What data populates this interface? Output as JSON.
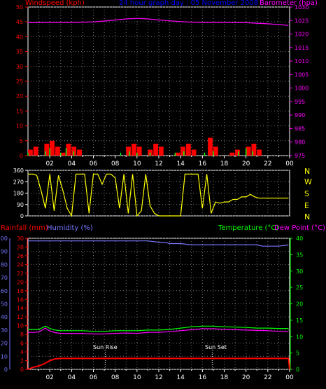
{
  "header": {
    "left_label": "Windspeed (kph)",
    "center_label": "24 hour graph day : 05 November 2008",
    "right_label": "Barometer (hpa)"
  },
  "direction_labels": [
    "N",
    "W",
    "S",
    "E",
    "N"
  ],
  "lower_header": {
    "rain_label": "Rainfall (mm)",
    "humidity_label": "Humidity (%)",
    "temp_label": "Temperature (°C)",
    "dew_label": "Dew Point (°C)"
  },
  "annotations": {
    "sunrise": "Sun Rise",
    "sunset": "Sun Set"
  },
  "colors": {
    "wind": "#ff0000",
    "gust": "#00ff00",
    "calm": "#ffffff",
    "barometer": "#ff00ff",
    "direction": "#ffff00",
    "rain": "#ff0000",
    "humidity": "#7777ff",
    "temperature": "#00ff00",
    "dewpoint": "#ff00ff",
    "grid": "#777777",
    "axis": "#ffffff"
  },
  "chart_data": [
    {
      "type": "line",
      "title": "24 hour graph day : 05 November 2008",
      "xlabel": "",
      "x_ticks": [
        "02",
        "04",
        "06",
        "08",
        "10",
        "12",
        "14",
        "16",
        "18",
        "20",
        "22",
        "00"
      ],
      "xlim": [
        0,
        24
      ],
      "y_left_label": "Windspeed (kph)",
      "y_left_ticks": [
        0,
        5,
        10,
        15,
        20,
        25,
        30,
        35,
        40,
        45,
        50
      ],
      "y_left_lim": [
        0,
        50
      ],
      "y_right_label": "Barometer (hpa)",
      "y_right_ticks": [
        975,
        980,
        985,
        990,
        995,
        1000,
        1005,
        1010,
        1015,
        1020,
        1025,
        1030
      ],
      "y_right_lim": [
        975,
        1030
      ],
      "series": [
        {
          "name": "Barometer (hpa)",
          "axis": "right",
          "x": [
            0,
            1,
            2,
            3,
            4,
            5,
            6,
            7,
            8,
            9,
            10,
            11,
            12,
            13,
            14,
            15,
            16,
            17,
            18,
            19,
            20,
            21,
            22,
            23,
            23.9
          ],
          "y": [
            1024.2,
            1024.2,
            1024.3,
            1024.3,
            1024.3,
            1024.4,
            1024.5,
            1024.8,
            1025.2,
            1025.6,
            1025.8,
            1025.6,
            1025.2,
            1024.9,
            1024.6,
            1024.4,
            1024.3,
            1024.3,
            1024.3,
            1024.2,
            1024.2,
            1024.0,
            1023.8,
            1023.5,
            1023.2
          ]
        },
        {
          "name": "Windspeed (kph)",
          "axis": "left",
          "x": [
            0,
            0.5,
            1,
            1.5,
            2,
            2.5,
            3,
            3.5,
            4,
            4.5,
            5,
            5.5,
            6,
            6.5,
            7,
            7.5,
            8,
            8.5,
            9,
            9.5,
            10,
            10.5,
            11,
            11.5,
            12,
            12.5,
            13,
            13.5,
            14,
            14.5,
            15,
            15.5,
            16,
            16.5,
            17,
            17.5,
            18,
            18.5,
            19,
            19.5,
            20,
            20.5,
            21,
            21.5,
            22,
            22.5,
            23,
            23.5
          ],
          "y": [
            2,
            3,
            0,
            4,
            5,
            3,
            1,
            4,
            3,
            2,
            0,
            0,
            0,
            0,
            0,
            0,
            0,
            0,
            3,
            4,
            3,
            0,
            2,
            4,
            3,
            0,
            0,
            1,
            3,
            4,
            2,
            0,
            0,
            6,
            3,
            0,
            0,
            1,
            2,
            0,
            3,
            4,
            2,
            0,
            0,
            0,
            0,
            0
          ]
        },
        {
          "name": "Gust",
          "axis": "left",
          "x": [
            0,
            1.6,
            2.0,
            3.0,
            3.5,
            4.2,
            8.5,
            9.3,
            10.0,
            11.2,
            13.5,
            14.3,
            16.2,
            17.0,
            19.3,
            20.0,
            20.6
          ],
          "y": [
            0.5,
            1,
            2,
            0.5,
            2,
            1,
            0.5,
            1,
            0.5,
            0.5,
            0.5,
            1,
            0.5,
            1,
            1,
            2,
            1
          ]
        }
      ]
    },
    {
      "type": "line",
      "title": "",
      "xlim": [
        0,
        24
      ],
      "y_ticks": [
        0,
        90,
        180,
        270,
        360
      ],
      "ylim": [
        0,
        360
      ],
      "series": [
        {
          "name": "Wind direction",
          "x": [
            0,
            0.5,
            0.8,
            1.2,
            1.6,
            2.0,
            2.4,
            2.8,
            3.2,
            3.6,
            4.0,
            4.4,
            4.8,
            5.2,
            5.6,
            6.0,
            6.4,
            6.8,
            7.2,
            7.6,
            8.0,
            8.4,
            8.8,
            9.2,
            9.6,
            10.0,
            10.4,
            10.8,
            11.2,
            11.6,
            12.0,
            12.4,
            12.8,
            13.2,
            13.6,
            14.0,
            14.4,
            14.8,
            15.2,
            15.6,
            16.0,
            16.4,
            16.8,
            17.2,
            17.6,
            18.0,
            18.4,
            18.8,
            19.2,
            19.6,
            20.0,
            20.4,
            20.8,
            21.2,
            22.0,
            23.0,
            23.9
          ],
          "y": [
            330,
            330,
            320,
            200,
            60,
            330,
            40,
            320,
            200,
            60,
            0,
            330,
            330,
            330,
            20,
            330,
            330,
            250,
            330,
            330,
            300,
            60,
            330,
            20,
            330,
            0,
            40,
            330,
            80,
            20,
            0,
            0,
            0,
            0,
            0,
            0,
            330,
            330,
            330,
            330,
            60,
            330,
            20,
            110,
            100,
            110,
            110,
            130,
            130,
            150,
            150,
            170,
            150,
            140,
            140,
            140,
            140
          ]
        }
      ]
    },
    {
      "type": "line",
      "title": "",
      "xlim": [
        0,
        24
      ],
      "x_ticks": [
        "02",
        "04",
        "06",
        "08",
        "10",
        "12",
        "14",
        "16",
        "18",
        "20",
        "22",
        "00"
      ],
      "y_humidity_label": "Humidity (%)",
      "y_humidity_ticks": [
        0,
        10,
        20,
        30,
        40,
        50,
        60,
        70,
        80,
        90,
        100
      ],
      "y_rain_label": "Rainfall (mm)",
      "y_rain_ticks": [
        0,
        2,
        4,
        6,
        8,
        10,
        12,
        14,
        16,
        18,
        20,
        22,
        24,
        26,
        28,
        30
      ],
      "y_temp_label": "Temperature (°C)",
      "y_temp_ticks": [
        0,
        5,
        10,
        15,
        20,
        25,
        30,
        35,
        40
      ],
      "series": [
        {
          "name": "Humidity (%)",
          "axis": "humidity",
          "x": [
            0,
            2,
            4,
            6,
            8,
            10,
            11,
            12,
            12.5,
            13,
            14,
            15,
            16,
            17,
            18,
            19,
            20,
            21,
            21.5,
            22,
            23,
            23.9
          ],
          "y": [
            98,
            98,
            98,
            98,
            98,
            98,
            98,
            97,
            97,
            96,
            96,
            95,
            95,
            95,
            95,
            95,
            95,
            95,
            94,
            94,
            94,
            95
          ]
        },
        {
          "name": "Rainfall (mm)",
          "axis": "rain",
          "x": [
            0,
            0.5,
            1.0,
            1.5,
            2.0,
            2.5,
            3.0,
            6,
            10,
            14,
            18,
            22,
            23.9,
            24
          ],
          "y": [
            0,
            0.5,
            0.8,
            1.3,
            2.0,
            2.4,
            2.5,
            2.5,
            2.5,
            2.5,
            2.5,
            2.5,
            2.5,
            0
          ]
        },
        {
          "name": "Temperature (°C)",
          "axis": "temp",
          "x": [
            0,
            0.5,
            1,
            1.6,
            2,
            2.5,
            3,
            4,
            5,
            6,
            7,
            8,
            9,
            10,
            11,
            12,
            13,
            14,
            15,
            16,
            17,
            18,
            19,
            20,
            21,
            22,
            23,
            23.9
          ],
          "y": [
            12.2,
            12.2,
            12.2,
            13.2,
            12.5,
            12.0,
            11.8,
            11.8,
            11.8,
            11.6,
            11.6,
            11.8,
            11.8,
            11.8,
            12.0,
            12.0,
            12.2,
            12.6,
            13.0,
            13.2,
            13.2,
            13.0,
            12.9,
            12.8,
            12.6,
            12.6,
            12.5,
            12.5
          ]
        },
        {
          "name": "Dew Point (°C)",
          "axis": "temp",
          "x": [
            0,
            0.5,
            1,
            1.6,
            2,
            2.5,
            3,
            4,
            5,
            6,
            7,
            8,
            9,
            10,
            11,
            12,
            13,
            14,
            15,
            16,
            17,
            18,
            19,
            20,
            21,
            22,
            23,
            23.9
          ],
          "y": [
            11.3,
            11.3,
            11.4,
            12.6,
            11.7,
            11.2,
            11.0,
            11.0,
            11.0,
            10.8,
            10.8,
            11.0,
            11.1,
            11.0,
            11.3,
            11.3,
            11.5,
            11.8,
            12.1,
            12.4,
            12.4,
            12.2,
            12.1,
            12.0,
            11.9,
            11.8,
            11.6,
            11.6
          ]
        }
      ],
      "annotations": [
        {
          "label": "Sun Rise",
          "x": 7.1
        },
        {
          "label": "Sun Set",
          "x": 16.9
        }
      ]
    }
  ]
}
